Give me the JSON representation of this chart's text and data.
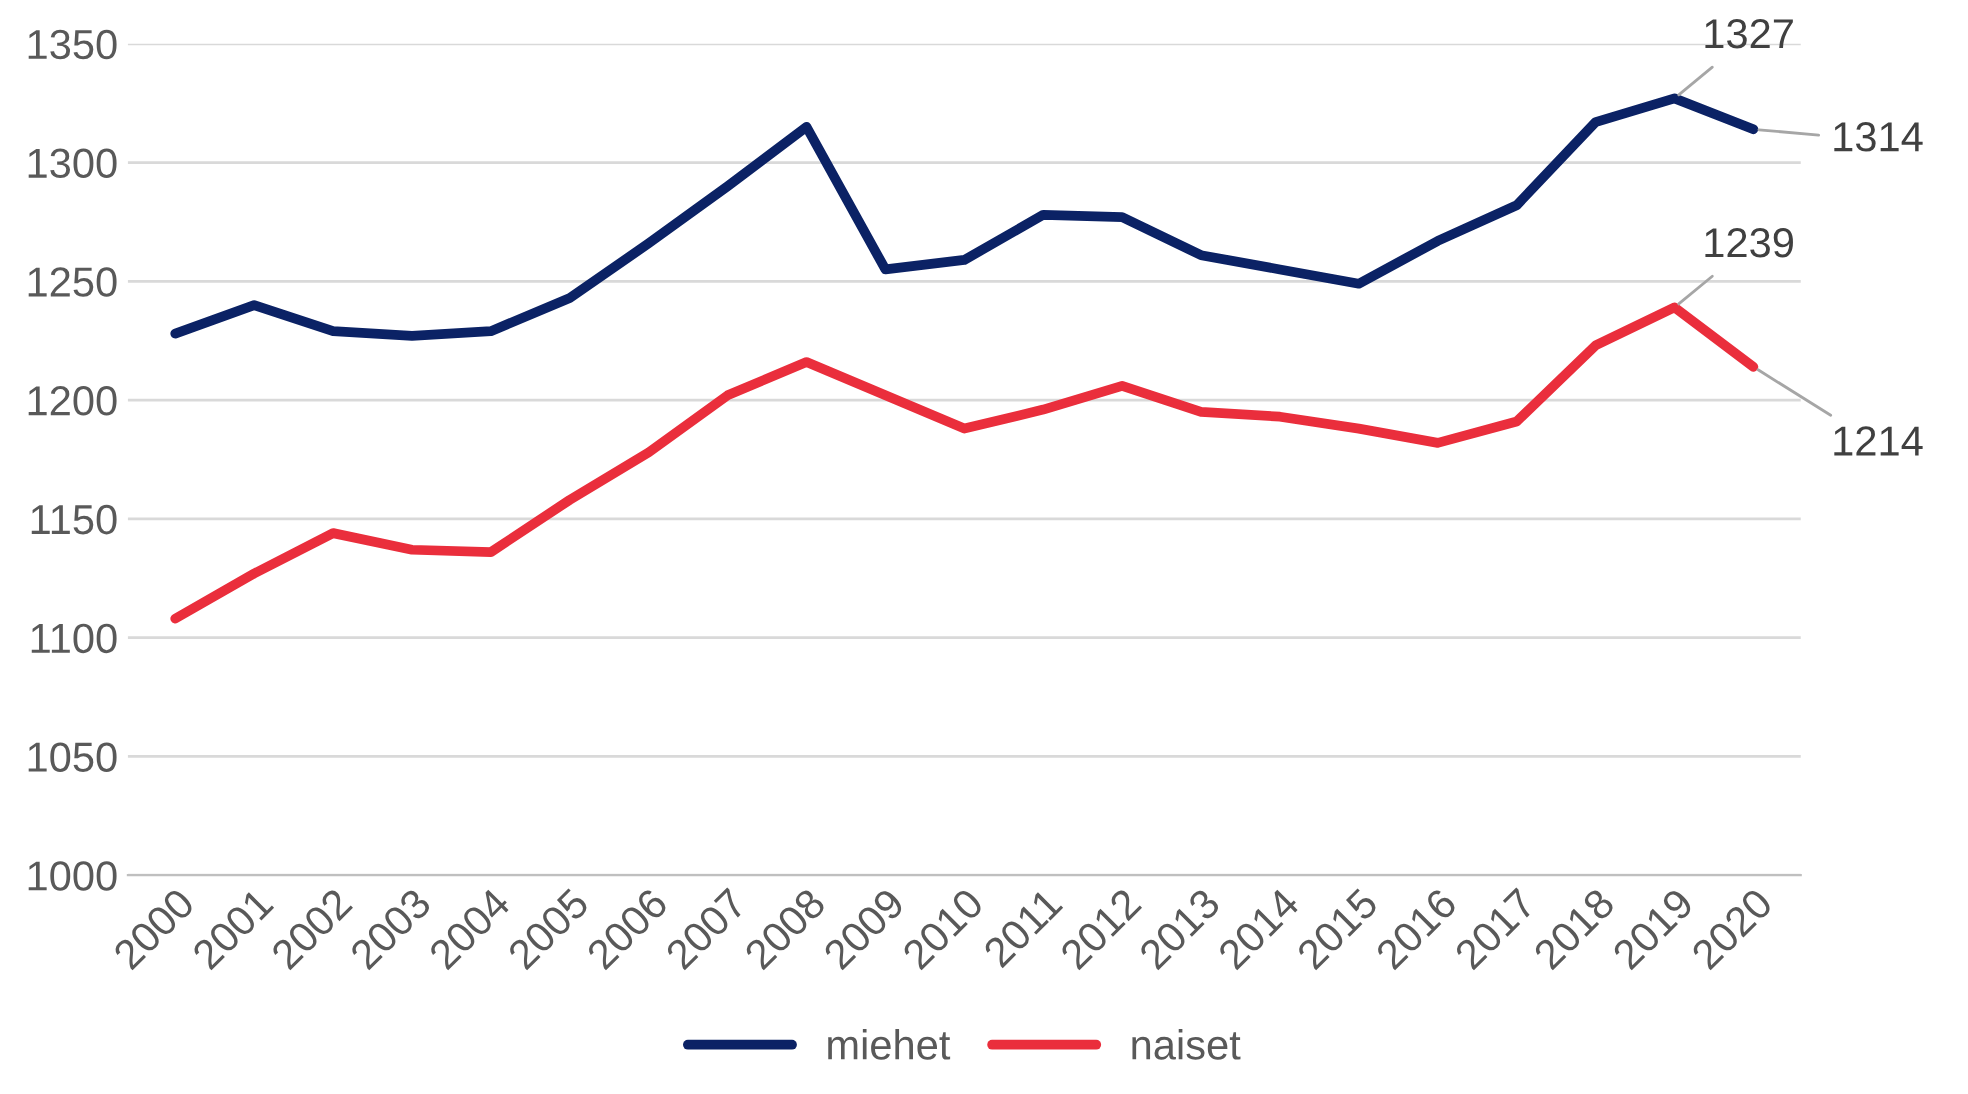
{
  "chart_data": {
    "type": "line",
    "categories": [
      "2000",
      "2001",
      "2002",
      "2003",
      "2004",
      "2005",
      "2006",
      "2007",
      "2008",
      "2009",
      "2010",
      "2011",
      "2012",
      "2013",
      "2014",
      "2015",
      "2016",
      "2017",
      "2018",
      "2019",
      "2020"
    ],
    "series": [
      {
        "name": "miehet",
        "color": "#0b2265",
        "values": [
          1228,
          1240,
          1229,
          1227,
          1229,
          1243,
          1266,
          1290,
          1315,
          1255,
          1259,
          1278,
          1277,
          1261,
          1255,
          1249,
          1267,
          1282,
          1317,
          1327,
          1314
        ]
      },
      {
        "name": "naiset",
        "color": "#ea2e3c",
        "values": [
          1108,
          1127,
          1144,
          1137,
          1136,
          1158,
          1178,
          1202,
          1216,
          1202,
          1188,
          1196,
          1206,
          1195,
          1193,
          1188,
          1182,
          1191,
          1223,
          1239,
          1214
        ]
      }
    ],
    "annotations": [
      {
        "text": "1327",
        "x": "2019",
        "y": 1327
      },
      {
        "text": "1314",
        "x": "2020",
        "y": 1314
      },
      {
        "text": "1239",
        "x": "2019",
        "y": 1239
      },
      {
        "text": "1214",
        "x": "2020",
        "y": 1214
      }
    ],
    "ylim": [
      1000,
      1350
    ],
    "yticks": [
      1000,
      1050,
      1100,
      1150,
      1200,
      1250,
      1300,
      1350
    ],
    "grid": "y",
    "legend": "bottom",
    "marker": "none",
    "line_style": "solid"
  }
}
